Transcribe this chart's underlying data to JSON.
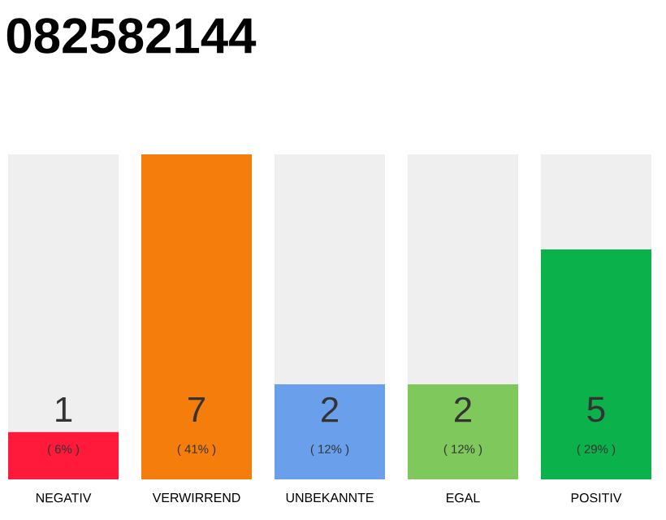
{
  "chart_data": {
    "type": "bar",
    "title": "082582144",
    "stacked": true,
    "categories": [
      "NEGATIV",
      "VERWIRREND",
      "UNBEKANNTE",
      "EGAL",
      "POSITIV"
    ],
    "series": [
      {
        "colors": [
          "#ff1a3c",
          "#f47d0c",
          "#6aa0eb",
          "#7ec85c",
          "#0bb14a"
        ],
        "values": [
          6,
          41,
          12,
          12,
          29
        ],
        "value_labels": [
          "( 6% )",
          "( 41% )",
          "( 12% )",
          "( 12% )",
          "( 29% )"
        ]
      },
      {
        "color": "#efefef",
        "values": [
          35,
          0,
          29,
          29,
          12
        ]
      }
    ],
    "annotations": [
      "1",
      "7",
      "2",
      "2",
      "5"
    ]
  }
}
